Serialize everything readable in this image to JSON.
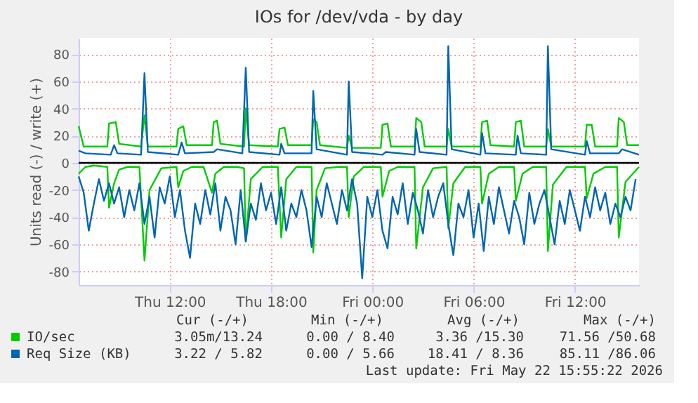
{
  "chart_data": {
    "type": "line",
    "title": "IOs for /dev/vda - by day",
    "ylabel": "Units read (-) / write (+)",
    "xlim": [
      "2026-05-21T06:36",
      "2026-05-22T15:48"
    ],
    "xticks": [
      {
        "value": "2026-05-21T12:00",
        "label": "Thu 12:00"
      },
      {
        "value": "2026-05-21T18:00",
        "label": "Thu 18:00"
      },
      {
        "value": "2026-05-22T00:00",
        "label": "Fri 00:00"
      },
      {
        "value": "2026-05-22T06:00",
        "label": "Fri 06:00"
      },
      {
        "value": "2026-05-22T12:00",
        "label": "Fri 12:00"
      }
    ],
    "ylim": [
      -90,
      92
    ],
    "yticks": [
      -80,
      -60,
      -40,
      -20,
      0,
      20,
      40,
      60,
      80
    ],
    "grid": true,
    "legend": "bottom",
    "marker": "none",
    "line_style": "solid",
    "ref_lines": [
      {
        "axis": "y",
        "value": 0,
        "color": "#000000"
      }
    ],
    "series": [
      {
        "color": "#00cc00",
        "x": [
          "2026-05-21T06:36",
          "2026-05-21T07:00",
          "2026-05-21T07:30",
          "2026-05-21T08:18",
          "2026-05-21T08:24",
          "2026-05-21T08:42",
          "2026-05-21T09:00",
          "2026-05-21T09:30",
          "2026-05-21T10:12",
          "2026-05-21T10:30",
          "2026-05-21T10:48",
          "2026-05-21T11:30",
          "2026-05-21T12:24",
          "2026-05-21T12:30",
          "2026-05-21T12:48",
          "2026-05-21T13:18",
          "2026-05-21T14:00",
          "2026-05-21T14:30",
          "2026-05-21T14:42",
          "2026-05-21T15:12",
          "2026-05-21T16:00",
          "2026-05-21T16:24",
          "2026-05-21T16:30",
          "2026-05-21T16:48",
          "2026-05-21T17:30",
          "2026-05-21T18:24",
          "2026-05-21T18:36",
          "2026-05-21T18:54",
          "2026-05-21T19:30",
          "2026-05-21T20:24",
          "2026-05-21T20:30",
          "2026-05-21T20:42",
          "2026-05-21T21:12",
          "2026-05-21T22:00",
          "2026-05-21T22:30",
          "2026-05-21T22:36",
          "2026-05-21T22:54",
          "2026-05-21T23:30",
          "2026-05-22T00:30",
          "2026-05-22T00:36",
          "2026-05-22T01:00",
          "2026-05-22T01:30",
          "2026-05-22T02:30",
          "2026-05-22T02:36",
          "2026-05-22T03:00",
          "2026-05-22T03:36",
          "2026-05-22T04:24",
          "2026-05-22T04:30",
          "2026-05-22T04:48",
          "2026-05-22T05:30",
          "2026-05-22T06:24",
          "2026-05-22T06:30",
          "2026-05-22T06:54",
          "2026-05-22T07:30",
          "2026-05-22T08:24",
          "2026-05-22T08:30",
          "2026-05-22T08:54",
          "2026-05-22T09:30",
          "2026-05-22T10:18",
          "2026-05-22T10:24",
          "2026-05-22T10:42",
          "2026-05-22T11:30",
          "2026-05-22T12:36",
          "2026-05-22T12:42",
          "2026-05-22T13:06",
          "2026-05-22T13:48",
          "2026-05-22T14:30",
          "2026-05-22T14:36",
          "2026-05-22T15:00",
          "2026-05-22T15:48"
        ],
        "values": [
          -8,
          -3,
          -2,
          -3,
          -33,
          -15,
          -5,
          -3,
          -3,
          -72,
          -20,
          -4,
          -3,
          -18,
          -6,
          -3,
          -3,
          -22,
          -8,
          -3,
          -3,
          -4,
          -58,
          -12,
          -3,
          -3,
          -55,
          -12,
          -3,
          -3,
          -66,
          -20,
          -4,
          -3,
          -3,
          -40,
          -10,
          -3,
          -3,
          -25,
          -6,
          -3,
          -3,
          -63,
          -18,
          -4,
          -3,
          -48,
          -15,
          -3,
          -3,
          -30,
          -8,
          -3,
          -3,
          -28,
          -8,
          -3,
          -3,
          -65,
          -16,
          -3,
          -3,
          -26,
          -8,
          -3,
          -3,
          -55,
          -14,
          -3
        ]
      },
      {
        "name": "IO/sec",
        "color": "#00cc00",
        "x": [
          "2026-05-21T06:36",
          "2026-05-21T06:54",
          "2026-05-21T08:18",
          "2026-05-21T08:24",
          "2026-05-21T08:48",
          "2026-05-21T09:00",
          "2026-05-21T10:18",
          "2026-05-21T10:30",
          "2026-05-21T10:42",
          "2026-05-21T12:24",
          "2026-05-21T12:30",
          "2026-05-21T12:48",
          "2026-05-21T13:00",
          "2026-05-21T14:30",
          "2026-05-21T14:36",
          "2026-05-21T14:48",
          "2026-05-21T15:00",
          "2026-05-21T16:24",
          "2026-05-21T16:30",
          "2026-05-21T16:42",
          "2026-05-21T18:24",
          "2026-05-21T18:30",
          "2026-05-21T18:48",
          "2026-05-21T19:00",
          "2026-05-21T20:24",
          "2026-05-21T20:30",
          "2026-05-21T20:42",
          "2026-05-21T20:54",
          "2026-05-21T22:30",
          "2026-05-21T22:36",
          "2026-05-21T22:48",
          "2026-05-22T00:30",
          "2026-05-22T00:36",
          "2026-05-22T00:54",
          "2026-05-22T01:06",
          "2026-05-22T02:30",
          "2026-05-22T02:36",
          "2026-05-22T02:54",
          "2026-05-22T03:06",
          "2026-05-22T04:24",
          "2026-05-22T04:30",
          "2026-05-22T04:42",
          "2026-05-22T06:24",
          "2026-05-22T06:30",
          "2026-05-22T06:48",
          "2026-05-22T07:00",
          "2026-05-22T08:24",
          "2026-05-22T08:30",
          "2026-05-22T08:48",
          "2026-05-22T09:00",
          "2026-05-22T10:18",
          "2026-05-22T10:24",
          "2026-05-22T10:36",
          "2026-05-22T12:36",
          "2026-05-22T12:42",
          "2026-05-22T13:00",
          "2026-05-22T13:12",
          "2026-05-22T14:30",
          "2026-05-22T14:36",
          "2026-05-22T14:54",
          "2026-05-22T15:06",
          "2026-05-22T15:48"
        ],
        "values": [
          27,
          12,
          12,
          29,
          30,
          14,
          12,
          35,
          12,
          12,
          25,
          27,
          13,
          13,
          30,
          31,
          14,
          12,
          40,
          13,
          12,
          25,
          26,
          13,
          13,
          32,
          30,
          13,
          11,
          20,
          11,
          11,
          28,
          29,
          12,
          12,
          33,
          30,
          12,
          12,
          25,
          12,
          12,
          30,
          31,
          13,
          12,
          30,
          31,
          12,
          12,
          25,
          12,
          12,
          28,
          28,
          12,
          12,
          33,
          30,
          13,
          13
        ]
      },
      {
        "color": "#0066b3",
        "x": [
          "2026-05-21T06:36",
          "2026-05-21T06:54",
          "2026-05-21T07:12",
          "2026-05-21T07:30",
          "2026-05-21T07:48",
          "2026-05-21T08:06",
          "2026-05-21T08:24",
          "2026-05-21T08:42",
          "2026-05-21T09:00",
          "2026-05-21T09:18",
          "2026-05-21T09:36",
          "2026-05-21T09:54",
          "2026-05-21T10:12",
          "2026-05-21T10:30",
          "2026-05-21T10:48",
          "2026-05-21T11:06",
          "2026-05-21T11:24",
          "2026-05-21T11:42",
          "2026-05-21T12:00",
          "2026-05-21T12:18",
          "2026-05-21T12:36",
          "2026-05-21T12:54",
          "2026-05-21T13:12",
          "2026-05-21T13:30",
          "2026-05-21T13:48",
          "2026-05-21T14:06",
          "2026-05-21T14:24",
          "2026-05-21T14:42",
          "2026-05-21T15:00",
          "2026-05-21T15:18",
          "2026-05-21T15:36",
          "2026-05-21T15:54",
          "2026-05-21T16:12",
          "2026-05-21T16:30",
          "2026-05-21T16:48",
          "2026-05-21T17:06",
          "2026-05-21T17:24",
          "2026-05-21T17:42",
          "2026-05-21T18:00",
          "2026-05-21T18:18",
          "2026-05-21T18:36",
          "2026-05-21T18:54",
          "2026-05-21T19:12",
          "2026-05-21T19:30",
          "2026-05-21T19:48",
          "2026-05-21T20:06",
          "2026-05-21T20:24",
          "2026-05-21T20:42",
          "2026-05-21T21:00",
          "2026-05-21T21:18",
          "2026-05-21T21:36",
          "2026-05-21T21:54",
          "2026-05-21T22:12",
          "2026-05-21T22:30",
          "2026-05-21T22:48",
          "2026-05-21T23:06",
          "2026-05-21T23:24",
          "2026-05-21T23:42",
          "2026-05-22T00:00",
          "2026-05-22T00:18",
          "2026-05-22T00:36",
          "2026-05-22T00:54",
          "2026-05-22T01:12",
          "2026-05-22T01:30",
          "2026-05-22T01:48",
          "2026-05-22T02:06",
          "2026-05-22T02:24",
          "2026-05-22T02:42",
          "2026-05-22T03:00",
          "2026-05-22T03:18",
          "2026-05-22T03:36",
          "2026-05-22T03:54",
          "2026-05-22T04:12",
          "2026-05-22T04:30",
          "2026-05-22T04:48",
          "2026-05-22T05:06",
          "2026-05-22T05:24",
          "2026-05-22T05:42",
          "2026-05-22T06:00",
          "2026-05-22T06:18",
          "2026-05-22T06:36",
          "2026-05-22T06:54",
          "2026-05-22T07:12",
          "2026-05-22T07:30",
          "2026-05-22T07:48",
          "2026-05-22T08:06",
          "2026-05-22T08:24",
          "2026-05-22T08:42",
          "2026-05-22T09:00",
          "2026-05-22T09:18",
          "2026-05-22T09:36",
          "2026-05-22T09:54",
          "2026-05-22T10:12",
          "2026-05-22T10:30",
          "2026-05-22T10:48",
          "2026-05-22T11:06",
          "2026-05-22T11:24",
          "2026-05-22T11:42",
          "2026-05-22T12:00",
          "2026-05-22T12:18",
          "2026-05-22T12:36",
          "2026-05-22T12:54",
          "2026-05-22T13:12",
          "2026-05-22T13:30",
          "2026-05-22T13:48",
          "2026-05-22T14:06",
          "2026-05-22T14:24",
          "2026-05-22T14:42",
          "2026-05-22T15:00",
          "2026-05-22T15:18",
          "2026-05-22T15:36"
        ],
        "values": [
          -10,
          -22,
          -50,
          -30,
          -12,
          -28,
          -15,
          -30,
          -18,
          -40,
          -20,
          -35,
          -15,
          -45,
          -25,
          -55,
          -18,
          -30,
          -10,
          -40,
          -20,
          -50,
          -70,
          -30,
          -45,
          -20,
          -38,
          -15,
          -50,
          -25,
          -35,
          -60,
          -20,
          -58,
          -30,
          -42,
          -15,
          -35,
          -22,
          -45,
          -18,
          -50,
          -30,
          -40,
          -20,
          -35,
          -62,
          -25,
          -40,
          -15,
          -30,
          -45,
          -20,
          -35,
          -12,
          -30,
          -85,
          -25,
          -40,
          -20,
          -50,
          -63,
          -25,
          -38,
          -15,
          -45,
          -22,
          -35,
          -52,
          -20,
          -40,
          -25,
          -15,
          -45,
          -68,
          -30,
          -40,
          -20,
          -55,
          -30,
          -65,
          -25,
          -45,
          -18,
          -35,
          -52,
          -28,
          -40,
          -60,
          -22,
          -45,
          -30,
          -20,
          -40,
          -60,
          -28,
          -45,
          -20,
          -35,
          -50,
          -25,
          -40,
          -18,
          -35,
          -22,
          -45,
          -30,
          -40,
          -25,
          -35,
          -12
        ]
      },
      {
        "name": "Req Size (KB)",
        "color": "#0066b3",
        "x": [
          "2026-05-21T06:36",
          "2026-05-21T07:00",
          "2026-05-21T08:30",
          "2026-05-21T08:42",
          "2026-05-21T08:54",
          "2026-05-21T10:18",
          "2026-05-21T10:30",
          "2026-05-21T10:42",
          "2026-05-21T12:30",
          "2026-05-21T12:42",
          "2026-05-21T12:54",
          "2026-05-21T14:36",
          "2026-05-21T14:48",
          "2026-05-21T16:18",
          "2026-05-21T16:30",
          "2026-05-21T16:42",
          "2026-05-21T18:30",
          "2026-05-21T18:36",
          "2026-05-21T18:48",
          "2026-05-21T20:24",
          "2026-05-21T20:30",
          "2026-05-21T20:42",
          "2026-05-21T22:30",
          "2026-05-21T22:36",
          "2026-05-21T22:48",
          "2026-05-22T00:36",
          "2026-05-22T00:48",
          "2026-05-22T02:30",
          "2026-05-22T02:36",
          "2026-05-22T02:48",
          "2026-05-22T04:24",
          "2026-05-22T04:30",
          "2026-05-22T04:42",
          "2026-05-22T06:24",
          "2026-05-22T06:30",
          "2026-05-22T06:42",
          "2026-05-22T08:30",
          "2026-05-22T08:36",
          "2026-05-22T08:48",
          "2026-05-22T10:18",
          "2026-05-22T10:24",
          "2026-05-22T10:36",
          "2026-05-22T12:36",
          "2026-05-22T12:42",
          "2026-05-22T12:54",
          "2026-05-22T14:36",
          "2026-05-22T14:48",
          "2026-05-22T15:48"
        ],
        "values": [
          9,
          7,
          6,
          13,
          7,
          6,
          66,
          8,
          6,
          15,
          7,
          8,
          10,
          7,
          70,
          8,
          6,
          14,
          7,
          7,
          53,
          10,
          6,
          60,
          8,
          6,
          8,
          6,
          25,
          8,
          6,
          86,
          10,
          6,
          22,
          7,
          6,
          20,
          7,
          6,
          86,
          10,
          6,
          16,
          7,
          7,
          10,
          6
        ]
      }
    ],
    "annotations": [
      "Cur (-/+)",
      "Min (-/+)",
      "Avg (-/+)",
      "Max (-/+)",
      "3.05m/13.24",
      "0.00 / 8.40",
      "3.36 /15.30",
      "71.56 /50.68",
      "3.22 / 5.82",
      "0.00 / 5.66",
      "18.41 / 8.36",
      "85.11 /86.06",
      "Last update: Fri May 22 15:55:22 2026"
    ]
  }
}
